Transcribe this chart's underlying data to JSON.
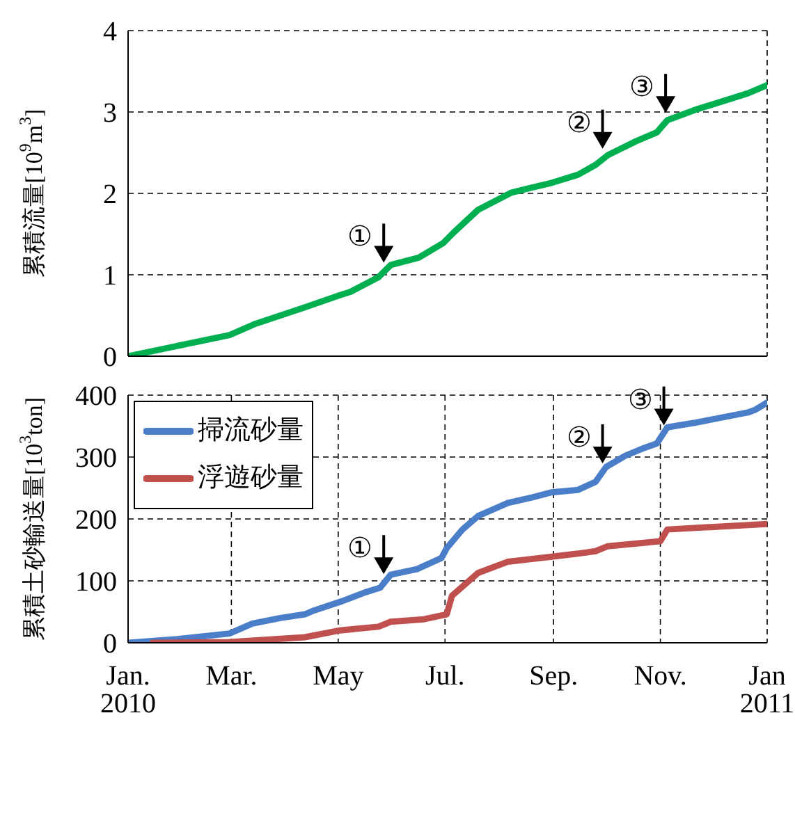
{
  "chart_data": [
    {
      "type": "line",
      "ylabel": "累積流量[10$^{9}$m$^{3}$]",
      "xlim": [
        "2010-01-01",
        "2011-01-01"
      ],
      "xticks": [
        {
          "value": "2010-01-01",
          "label": null
        },
        {
          "value": "2010-03-01",
          "label": null
        },
        {
          "value": "2010-05-01",
          "label": null
        },
        {
          "value": "2010-07-01",
          "label": null
        },
        {
          "value": "2010-09-01",
          "label": null
        },
        {
          "value": "2010-11-01",
          "label": null
        },
        {
          "value": "2011-01-01",
          "label": null
        }
      ],
      "ylim": [
        0,
        4
      ],
      "yticks": [
        0,
        1,
        2,
        3,
        4
      ],
      "grid": true,
      "tick_labels": "y",
      "legend": false,
      "series": [
        {
          "color": "#00b050",
          "x": [
            "2010-01-01",
            "2010-02-28",
            "2010-03-15",
            "2010-04-12",
            "2010-05-02",
            "2010-05-08",
            "2010-05-24",
            "2010-05-31",
            "2010-06-16",
            "2010-06-30",
            "2010-07-06",
            "2010-07-20",
            "2010-08-08",
            "2010-08-31",
            "2010-09-15",
            "2010-09-25",
            "2010-10-02",
            "2010-10-18",
            "2010-10-30",
            "2010-11-05",
            "2010-11-20",
            "2010-12-21",
            "2011-01-01"
          ],
          "values": [
            0,
            0.26,
            0.4,
            0.6,
            0.75,
            0.79,
            0.97,
            1.12,
            1.21,
            1.39,
            1.52,
            1.8,
            2.01,
            2.13,
            2.23,
            2.35,
            2.47,
            2.64,
            2.75,
            2.9,
            3.02,
            3.23,
            3.33
          ]
        }
      ],
      "annotations": [
        {
          "text": "①",
          "x": "2010-05-27",
          "y": 1.15
        },
        {
          "text": "②",
          "x": "2010-09-29",
          "y": 2.55
        },
        {
          "text": "③",
          "x": "2010-11-04",
          "y": 2.99
        }
      ]
    },
    {
      "type": "line",
      "ylabel": "累積土砂輸送量[10$^{3}$ton]",
      "xlim": [
        "2010-01-01",
        "2011-01-01"
      ],
      "xticks": [
        {
          "value": "2010-01-01",
          "label": "Jan.\n2010"
        },
        {
          "value": "2010-03-01",
          "label": "Mar."
        },
        {
          "value": "2010-05-01",
          "label": "May"
        },
        {
          "value": "2010-07-01",
          "label": "Jul."
        },
        {
          "value": "2010-09-01",
          "label": "Sep."
        },
        {
          "value": "2010-11-01",
          "label": "Nov."
        },
        {
          "value": "2011-01-01",
          "label": "Jan\n2011"
        }
      ],
      "ylim": [
        0,
        400
      ],
      "yticks": [
        0,
        100,
        200,
        300,
        400
      ],
      "grid": true,
      "legend": "top left",
      "series": [
        {
          "name": "掃流砂量",
          "color": "#4a7ec8",
          "x": [
            "2010-01-01",
            "2010-01-29",
            "2010-02-28",
            "2010-03-13",
            "2010-03-29",
            "2010-04-12",
            "2010-04-17",
            "2010-05-03",
            "2010-05-16",
            "2010-05-25",
            "2010-05-31",
            "2010-06-15",
            "2010-06-29",
            "2010-07-02",
            "2010-07-11",
            "2010-07-20",
            "2010-08-06",
            "2010-08-20",
            "2010-08-31",
            "2010-09-15",
            "2010-09-25",
            "2010-10-01",
            "2010-10-12",
            "2010-10-23",
            "2010-10-30",
            "2010-11-05",
            "2010-11-20",
            "2010-12-21",
            "2010-12-25",
            "2011-01-01"
          ],
          "values": [
            0,
            6,
            15,
            31,
            40,
            46,
            52,
            67,
            81,
            89,
            110,
            119,
            137,
            153,
            183,
            205,
            226,
            235,
            243,
            247,
            260,
            284,
            302,
            315,
            322,
            348,
            355,
            372,
            376,
            388
          ]
        },
        {
          "name": "浮遊砂量",
          "color": "#c0504d",
          "x": [
            "2010-01-15",
            "2010-02-28",
            "2010-04-12",
            "2010-05-02",
            "2010-05-24",
            "2010-05-31",
            "2010-06-19",
            "2010-07-02",
            "2010-07-05",
            "2010-07-20",
            "2010-08-06",
            "2010-08-31",
            "2010-09-15",
            "2010-09-25",
            "2010-10-02",
            "2010-11-01",
            "2010-11-05",
            "2011-01-01"
          ],
          "values": [
            0,
            1,
            9,
            20,
            26,
            34,
            38,
            46,
            76,
            113,
            131,
            139,
            144,
            148,
            156,
            164,
            183,
            192
          ]
        }
      ],
      "annotations": [
        {
          "text": "①",
          "x": "2010-05-27",
          "y": 111
        },
        {
          "text": "②",
          "x": "2010-09-29",
          "y": 290
        },
        {
          "text": "③",
          "x": "2010-11-03",
          "y": 351
        }
      ]
    }
  ]
}
